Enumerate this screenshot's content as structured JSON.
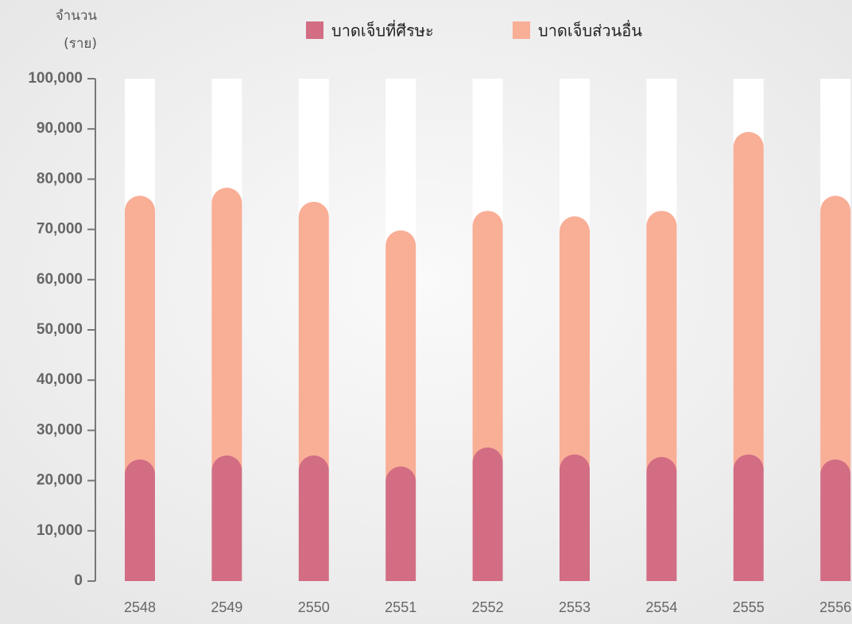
{
  "chart_data": {
    "type": "stacked-bar",
    "ylabel_lines": [
      "จำนวน",
      "(ราย)"
    ],
    "categories": [
      "2548",
      "2549",
      "2550",
      "2551",
      "2552",
      "2553",
      "2554",
      "2555",
      "2556"
    ],
    "series": [
      {
        "name": "บาดเจ็บที่ศีรษะ",
        "color": "#d26d84",
        "values": [
          24200,
          25000,
          25000,
          22800,
          26600,
          25200,
          24700,
          25200,
          24200
        ]
      },
      {
        "name": "บาดเจ็บส่วนอื่น",
        "color": "#f9ae96",
        "values": [
          52500,
          53300,
          50500,
          47000,
          47100,
          47400,
          49000,
          64200,
          52500
        ]
      }
    ],
    "ylim": [
      0,
      100000
    ],
    "yticks": [
      0,
      {
        "value": 10000,
        "label": "10,000"
      },
      {
        "value": 20000,
        "label": "20,000"
      },
      {
        "value": 30000,
        "label": "30,000"
      },
      {
        "value": 40000,
        "label": "40,000"
      },
      {
        "value": 50000,
        "label": "50,000"
      },
      {
        "value": 60000,
        "label": "60,000"
      },
      {
        "value": 70000,
        "label": "70,000"
      },
      {
        "value": 80000,
        "label": "80,000"
      },
      {
        "value": 90000,
        "label": "90,000"
      },
      {
        "value": 100000,
        "label": "100,000"
      }
    ]
  }
}
